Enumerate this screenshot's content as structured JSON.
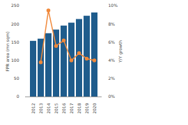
{
  "chart_data": {
    "type": "bar",
    "categories": [
      "2012",
      "2013",
      "2014",
      "2015",
      "2016",
      "2017",
      "2018",
      "2019",
      "2020"
    ],
    "ylabel": "FPR area (mn sqm)",
    "y2label": "Y/Y growth",
    "ylim": [
      0,
      250
    ],
    "yticks": [
      0,
      50,
      100,
      150,
      200,
      250
    ],
    "y2lim": [
      0,
      10
    ],
    "y2ticks": [
      {
        "value": 0,
        "label": "0%"
      },
      {
        "value": 2,
        "label": "2%"
      },
      {
        "value": 4,
        "label": "4%"
      },
      {
        "value": 6,
        "label": "6%"
      },
      {
        "value": 8,
        "label": "8%"
      },
      {
        "value": 10,
        "label": "10%"
      }
    ],
    "grid": false,
    "series": [
      {
        "type": "bar",
        "color": "#1f5c8c",
        "values": [
          153,
          159,
          174,
          184,
          195,
          203,
          213,
          222,
          231
        ]
      },
      {
        "type": "line",
        "axis": "y2",
        "color": "#f0883a",
        "marker": "circle",
        "values": [
          null,
          3.8,
          9.5,
          5.6,
          6.2,
          4.0,
          4.8,
          4.2,
          4.0
        ]
      }
    ]
  }
}
